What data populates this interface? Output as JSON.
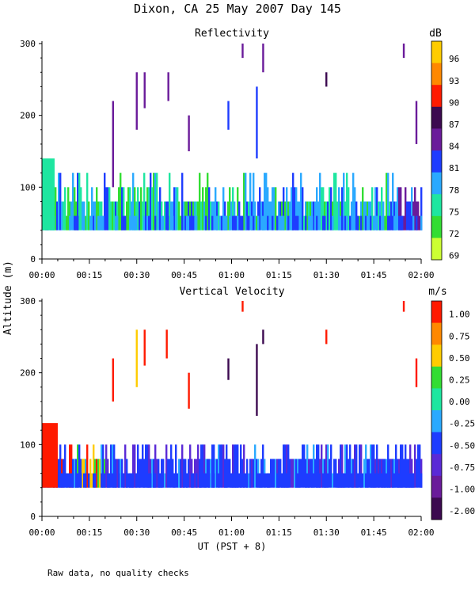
{
  "figure": {
    "title": "Dixon, CA 25 May 2007  Day 145",
    "ylabel": "Altitude (m)",
    "xlabel": "UT  (PST + 8)",
    "footnote": "Raw data, no quality checks"
  },
  "chart_data": [
    {
      "type": "heatmap",
      "title": "Reflectivity",
      "xlabel": "UT  (PST + 8)",
      "ylabel": "Altitude (m)",
      "x_ticks": [
        "00:00",
        "00:15",
        "00:30",
        "00:45",
        "01:00",
        "01:15",
        "01:30",
        "01:45",
        "02:00"
      ],
      "xlim_minutes": [
        0,
        120
      ],
      "y_ticks": [
        0,
        100,
        200,
        300
      ],
      "ylim": [
        0,
        300
      ],
      "colorbar": {
        "unit": "dB",
        "labels": [
          "96",
          "93",
          "90",
          "87",
          "84",
          "81",
          "78",
          "75",
          "72",
          "69"
        ],
        "colors": [
          "#ffcc00",
          "#ff8800",
          "#ff1a00",
          "#3c0a50",
          "#6a1b9a",
          "#1e3cff",
          "#2aa9ff",
          "#1ee6a0",
          "#33dd33",
          "#ccff33"
        ]
      },
      "layer": {
        "bottom_m": 40,
        "typical_top_m": 80,
        "max_top_m": 120
      },
      "near_ground_layer": {
        "start_min": 0,
        "end_min": 4,
        "top_m": 140,
        "value_db": 75
      },
      "plumes": [
        {
          "t": 22.5,
          "bottom": 100,
          "top": 220,
          "value": 84
        },
        {
          "t": 30.0,
          "bottom": 180,
          "top": 260,
          "value": 84
        },
        {
          "t": 32.5,
          "bottom": 210,
          "top": 260,
          "value": 84
        },
        {
          "t": 40.0,
          "bottom": 220,
          "top": 260,
          "value": 84
        },
        {
          "t": 46.5,
          "bottom": 150,
          "top": 200,
          "value": 84
        },
        {
          "t": 59.0,
          "bottom": 180,
          "top": 220,
          "value": 81
        },
        {
          "t": 63.5,
          "bottom": 280,
          "top": 300,
          "value": 84
        },
        {
          "t": 68.0,
          "bottom": 140,
          "top": 240,
          "value": 81
        },
        {
          "t": 70.0,
          "bottom": 260,
          "top": 300,
          "value": 84
        },
        {
          "t": 90.0,
          "bottom": 240,
          "top": 260,
          "value": 87
        },
        {
          "t": 114.5,
          "bottom": 280,
          "top": 300,
          "value": 84
        },
        {
          "t": 118.5,
          "bottom": 160,
          "top": 220,
          "value": 84
        }
      ]
    },
    {
      "type": "heatmap",
      "title": "Vertical Velocity",
      "xlabel": "UT  (PST + 8)",
      "ylabel": "Altitude (m)",
      "x_ticks": [
        "00:00",
        "00:15",
        "00:30",
        "00:45",
        "01:00",
        "01:15",
        "01:30",
        "01:45",
        "02:00"
      ],
      "xlim_minutes": [
        0,
        120
      ],
      "y_ticks": [
        0,
        100,
        200,
        300
      ],
      "ylim": [
        0,
        300
      ],
      "colorbar": {
        "unit": "m/s",
        "labels": [
          "1.00",
          "0.75",
          "0.50",
          "0.25",
          "0.00",
          "-0.25",
          "-0.50",
          "-0.75",
          "-1.00",
          "-2.00"
        ],
        "colors": [
          "#ff1a00",
          "#ff8800",
          "#ffcc00",
          "#33dd33",
          "#1ee6a0",
          "#2aa9ff",
          "#1e3cff",
          "#5a2ad6",
          "#6a1b9a",
          "#3c0a50"
        ]
      },
      "layer": {
        "bottom_m": 40,
        "typical_top_m": 80,
        "max_top_m": 100,
        "dominant_value": -0.5
      },
      "near_ground_layer": {
        "start_min": 0,
        "end_min": 5,
        "top_m": 130,
        "value": 1.0
      },
      "plumes": [
        {
          "t": 22.5,
          "bottom": 160,
          "top": 220,
          "value": 1.0
        },
        {
          "t": 30.0,
          "bottom": 180,
          "top": 260,
          "value": 0.5
        },
        {
          "t": 32.5,
          "bottom": 210,
          "top": 260,
          "value": 1.0
        },
        {
          "t": 39.5,
          "bottom": 220,
          "top": 260,
          "value": 1.0
        },
        {
          "t": 46.5,
          "bottom": 150,
          "top": 200,
          "value": 1.0
        },
        {
          "t": 59.0,
          "bottom": 190,
          "top": 220,
          "value": -2.0
        },
        {
          "t": 63.5,
          "bottom": 285,
          "top": 300,
          "value": 1.0
        },
        {
          "t": 68.0,
          "bottom": 140,
          "top": 240,
          "value": -2.0
        },
        {
          "t": 70.0,
          "bottom": 240,
          "top": 260,
          "value": -2.0
        },
        {
          "t": 90.0,
          "bottom": 240,
          "top": 260,
          "value": 1.0
        },
        {
          "t": 114.5,
          "bottom": 285,
          "top": 300,
          "value": 1.0
        },
        {
          "t": 118.5,
          "bottom": 180,
          "top": 220,
          "value": 1.0
        }
      ]
    }
  ]
}
